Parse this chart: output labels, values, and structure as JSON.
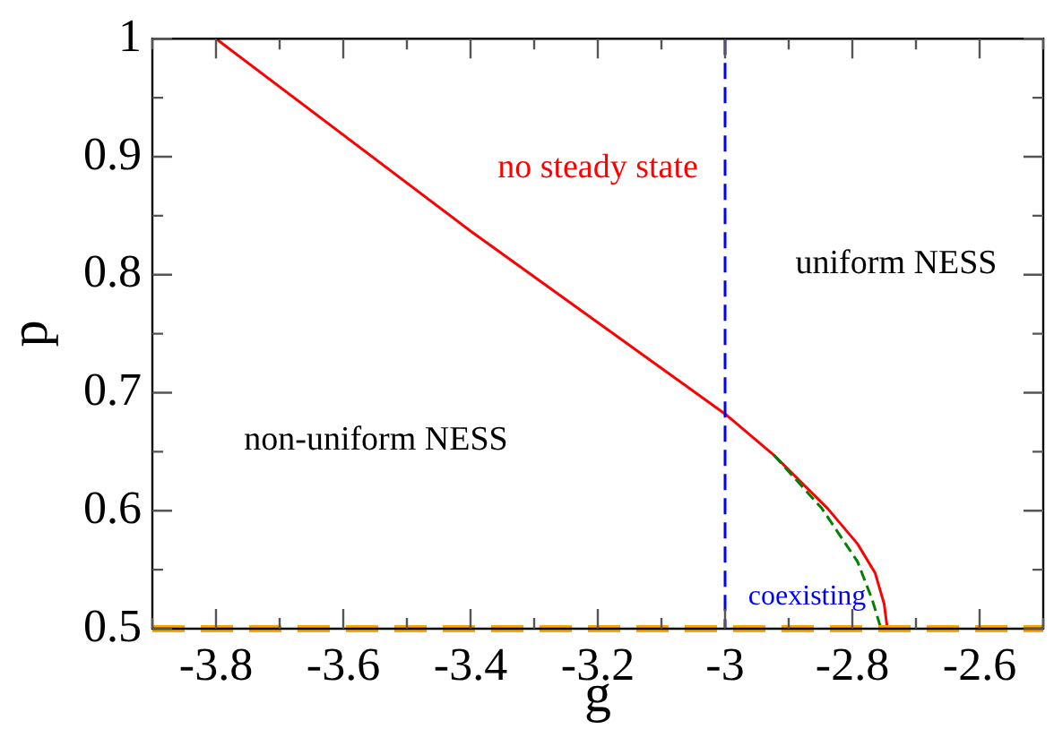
{
  "chart_data": {
    "type": "line",
    "xlabel": "g",
    "ylabel": "p",
    "xlim": [
      -3.9,
      -2.5
    ],
    "ylim": [
      0.5,
      1
    ],
    "xticks": [
      {
        "value": -3.9,
        "label": null
      },
      -3.8,
      {
        "value": -3.7,
        "label": null
      },
      -3.6,
      {
        "value": -3.5,
        "label": null
      },
      -3.4,
      {
        "value": -3.3,
        "label": null
      },
      -3.2,
      {
        "value": -3.1,
        "label": null
      },
      -3,
      {
        "value": -2.9,
        "label": null
      },
      -2.8,
      {
        "value": -2.7,
        "label": null
      },
      -2.6,
      {
        "value": -2.5,
        "label": null
      }
    ],
    "yticks": [
      0.5,
      {
        "value": 0.55,
        "label": null
      },
      0.6,
      {
        "value": 0.65,
        "label": null
      },
      0.7,
      {
        "value": 0.75,
        "label": null
      },
      0.8,
      {
        "value": 0.85,
        "label": null
      },
      0.9,
      {
        "value": 0.95,
        "label": null
      },
      1
    ],
    "grid": false,
    "legend": false,
    "marker": "none",
    "series": [
      {
        "color": "#ff0000",
        "line_style": "solid",
        "x": [
          -3.8,
          -3.4,
          -3,
          -2.923,
          -2.839,
          -2.792,
          -2.764,
          -2.75,
          -2.745
        ],
        "values": [
          1,
          0.837,
          0.682,
          0.647,
          0.602,
          0.572,
          0.547,
          0.521,
          0.5
        ]
      },
      {
        "color": "#008000",
        "line_style": "dashed",
        "x": [
          -2.923,
          -2.848,
          -2.792,
          -2.769,
          -2.755
        ],
        "values": [
          0.647,
          0.602,
          0.557,
          0.525,
          0.5
        ]
      }
    ],
    "ref_lines": [
      {
        "axis": "x",
        "value": -3,
        "color": "#0000ff",
        "line_style": "dashed"
      },
      {
        "axis": "y",
        "value": 0.5,
        "color": "#ffa500",
        "line_style": "dashed"
      }
    ],
    "annotations": [
      "no steady state",
      "uniform NESS",
      "non-uniform NESS",
      "coexisting"
    ]
  }
}
